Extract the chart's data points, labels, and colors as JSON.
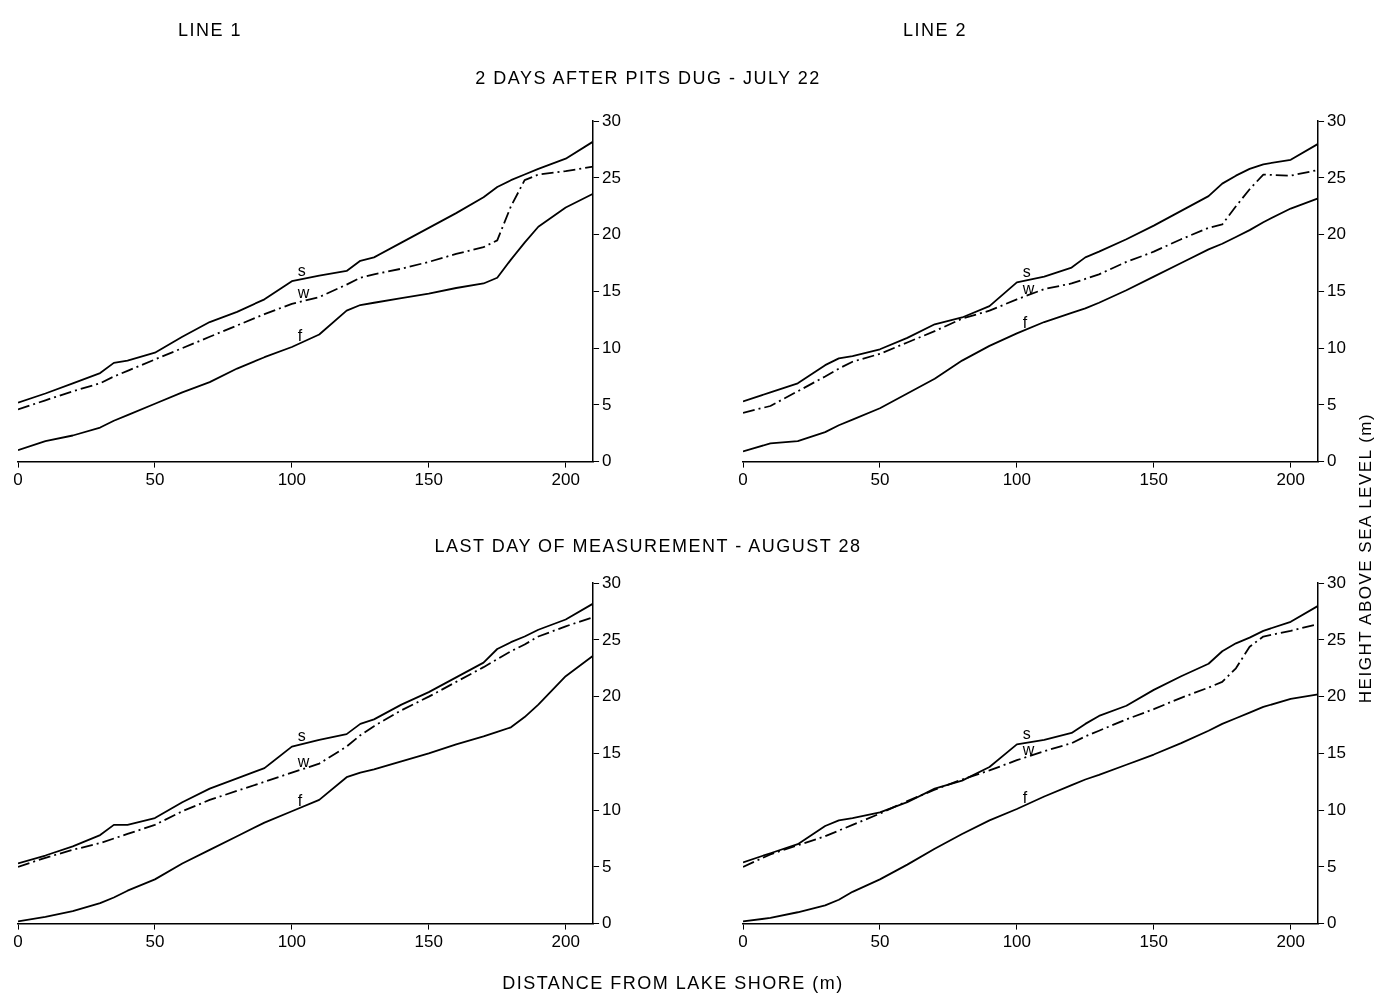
{
  "chart_data": [
    {
      "type": "line",
      "title": "LINE 1",
      "subtitle": "2 DAYS AFTER PITS DUG - JULY 22",
      "x": [
        0,
        10,
        20,
        30,
        35,
        40,
        50,
        60,
        70,
        80,
        90,
        100,
        110,
        120,
        125,
        130,
        140,
        150,
        160,
        170,
        175,
        180,
        185,
        190,
        200,
        210
      ],
      "xlim": [
        0,
        210
      ],
      "xticks": [
        0,
        50,
        100,
        150,
        200
      ],
      "ylim": [
        0,
        30
      ],
      "yticks": [
        0,
        5,
        10,
        15,
        20,
        25,
        30
      ],
      "marker": "none",
      "series": [
        {
          "name": "s",
          "color": "#000000",
          "line_style": "solid",
          "values": [
            5.2,
            6.0,
            6.9,
            7.8,
            8.7,
            8.9,
            9.6,
            11.0,
            12.3,
            13.2,
            14.3,
            15.9,
            16.4,
            16.8,
            17.7,
            18.0,
            19.3,
            20.6,
            21.9,
            23.3,
            24.2,
            24.8,
            25.3,
            25.8,
            26.7,
            28.2
          ]
        },
        {
          "name": "w",
          "color": "#000000",
          "line_style": "dashed",
          "values": [
            4.6,
            5.4,
            6.2,
            6.9,
            7.5,
            8.0,
            9.0,
            10.0,
            11.0,
            12.0,
            13.0,
            13.9,
            14.5,
            15.6,
            16.2,
            16.5,
            17.0,
            17.6,
            18.3,
            18.9,
            19.5,
            22.5,
            24.8,
            25.3,
            25.6,
            26.0
          ]
        },
        {
          "name": "f",
          "color": "#000000",
          "line_style": "solid",
          "values": [
            1.0,
            1.8,
            2.3,
            3.0,
            3.6,
            4.1,
            5.1,
            6.1,
            7.0,
            8.2,
            9.2,
            10.1,
            11.2,
            13.3,
            13.8,
            14.0,
            14.4,
            14.8,
            15.3,
            15.7,
            16.2,
            17.8,
            19.3,
            20.7,
            22.4,
            23.6
          ]
        }
      ]
    },
    {
      "type": "line",
      "title": "LINE 2",
      "ylabel": "HEIGHT ABOVE SEA LEVEL (m)",
      "x": [
        0,
        10,
        20,
        30,
        35,
        40,
        50,
        60,
        70,
        80,
        90,
        100,
        110,
        120,
        125,
        130,
        140,
        150,
        160,
        170,
        175,
        180,
        185,
        190,
        200,
        210
      ],
      "xlim": [
        0,
        210
      ],
      "xticks": [
        0,
        50,
        100,
        150,
        200
      ],
      "ylim": [
        0,
        30
      ],
      "yticks": [
        0,
        5,
        10,
        15,
        20,
        25,
        30
      ],
      "marker": "none",
      "series": [
        {
          "name": "s",
          "color": "#000000",
          "line_style": "solid",
          "values": [
            5.3,
            6.1,
            6.9,
            8.5,
            9.1,
            9.3,
            9.9,
            10.9,
            12.1,
            12.7,
            13.7,
            15.8,
            16.3,
            17.1,
            18.0,
            18.5,
            19.6,
            20.8,
            22.1,
            23.4,
            24.5,
            25.2,
            25.8,
            26.2,
            26.6,
            28.0
          ]
        },
        {
          "name": "w",
          "color": "#000000",
          "line_style": "dashed",
          "values": [
            4.3,
            4.9,
            6.2,
            7.5,
            8.2,
            8.8,
            9.5,
            10.5,
            11.5,
            12.6,
            13.3,
            14.3,
            15.2,
            15.7,
            16.1,
            16.5,
            17.6,
            18.5,
            19.6,
            20.6,
            20.9,
            22.5,
            24.0,
            25.3,
            25.2,
            25.7
          ]
        },
        {
          "name": "f",
          "color": "#000000",
          "line_style": "solid",
          "values": [
            0.9,
            1.6,
            1.8,
            2.6,
            3.2,
            3.7,
            4.7,
            6.0,
            7.3,
            8.9,
            10.2,
            11.3,
            12.3,
            13.1,
            13.5,
            14.0,
            15.1,
            16.3,
            17.5,
            18.7,
            19.2,
            19.8,
            20.4,
            21.1,
            22.3,
            23.2
          ]
        }
      ]
    },
    {
      "type": "line",
      "subtitle": "LAST DAY OF MEASUREMENT - AUGUST 28",
      "xlabel": "DISTANCE FROM LAKE SHORE (m)",
      "x": [
        0,
        10,
        20,
        30,
        35,
        40,
        50,
        60,
        70,
        80,
        90,
        100,
        110,
        120,
        125,
        130,
        140,
        150,
        160,
        170,
        175,
        180,
        185,
        190,
        200,
        210
      ],
      "xlim": [
        0,
        210
      ],
      "xticks": [
        0,
        50,
        100,
        150,
        200
      ],
      "ylim": [
        0,
        30
      ],
      "yticks": [
        0,
        5,
        10,
        15,
        20,
        25,
        30
      ],
      "marker": "none",
      "series": [
        {
          "name": "s",
          "color": "#000000",
          "line_style": "solid",
          "values": [
            5.3,
            6.0,
            6.8,
            7.8,
            8.7,
            8.7,
            9.3,
            10.7,
            11.9,
            12.8,
            13.7,
            15.6,
            16.2,
            16.7,
            17.6,
            18.0,
            19.3,
            20.4,
            21.7,
            23.0,
            24.2,
            24.8,
            25.3,
            25.9,
            26.8,
            28.2
          ]
        },
        {
          "name": "w",
          "color": "#000000",
          "line_style": "dashed",
          "values": [
            5.0,
            5.8,
            6.5,
            7.1,
            7.5,
            7.9,
            8.7,
            9.9,
            10.9,
            11.7,
            12.5,
            13.3,
            14.1,
            15.6,
            16.6,
            17.4,
            18.8,
            20.0,
            21.3,
            22.6,
            23.3,
            24.0,
            24.6,
            25.3,
            26.2,
            27.0
          ]
        },
        {
          "name": "f",
          "color": "#000000",
          "line_style": "solid",
          "values": [
            0.2,
            0.6,
            1.1,
            1.8,
            2.3,
            2.9,
            3.9,
            5.3,
            6.5,
            7.7,
            8.9,
            9.9,
            10.9,
            12.9,
            13.3,
            13.6,
            14.3,
            15.0,
            15.8,
            16.5,
            16.9,
            17.3,
            18.2,
            19.3,
            21.8,
            23.6
          ]
        }
      ]
    },
    {
      "type": "line",
      "x": [
        0,
        10,
        20,
        30,
        35,
        40,
        50,
        60,
        70,
        80,
        90,
        100,
        110,
        120,
        125,
        130,
        140,
        150,
        160,
        170,
        175,
        180,
        185,
        190,
        200,
        210
      ],
      "xlim": [
        0,
        210
      ],
      "xticks": [
        0,
        50,
        100,
        150,
        200
      ],
      "ylim": [
        0,
        30
      ],
      "yticks": [
        0,
        5,
        10,
        15,
        20,
        25,
        30
      ],
      "marker": "none",
      "series": [
        {
          "name": "s",
          "color": "#000000",
          "line_style": "solid",
          "values": [
            5.4,
            6.2,
            7.0,
            8.6,
            9.1,
            9.3,
            9.8,
            10.7,
            11.9,
            12.6,
            13.8,
            15.8,
            16.2,
            16.8,
            17.6,
            18.3,
            19.2,
            20.6,
            21.8,
            22.9,
            24.0,
            24.7,
            25.2,
            25.8,
            26.6,
            28.0
          ]
        },
        {
          "name": "w",
          "color": "#000000",
          "line_style": "dashed",
          "values": [
            5.0,
            6.1,
            6.9,
            7.7,
            8.2,
            8.7,
            9.7,
            10.8,
            11.8,
            12.7,
            13.5,
            14.4,
            15.2,
            15.9,
            16.5,
            17.0,
            18.0,
            18.9,
            19.9,
            20.8,
            21.3,
            22.5,
            24.4,
            25.3,
            25.8,
            26.4
          ]
        },
        {
          "name": "f",
          "color": "#000000",
          "line_style": "solid",
          "values": [
            0.2,
            0.5,
            1.0,
            1.6,
            2.1,
            2.8,
            3.9,
            5.2,
            6.6,
            7.9,
            9.1,
            10.1,
            11.2,
            12.2,
            12.7,
            13.1,
            14.0,
            14.9,
            15.9,
            17.0,
            17.6,
            18.1,
            18.6,
            19.1,
            19.8,
            20.2
          ]
        }
      ]
    }
  ]
}
